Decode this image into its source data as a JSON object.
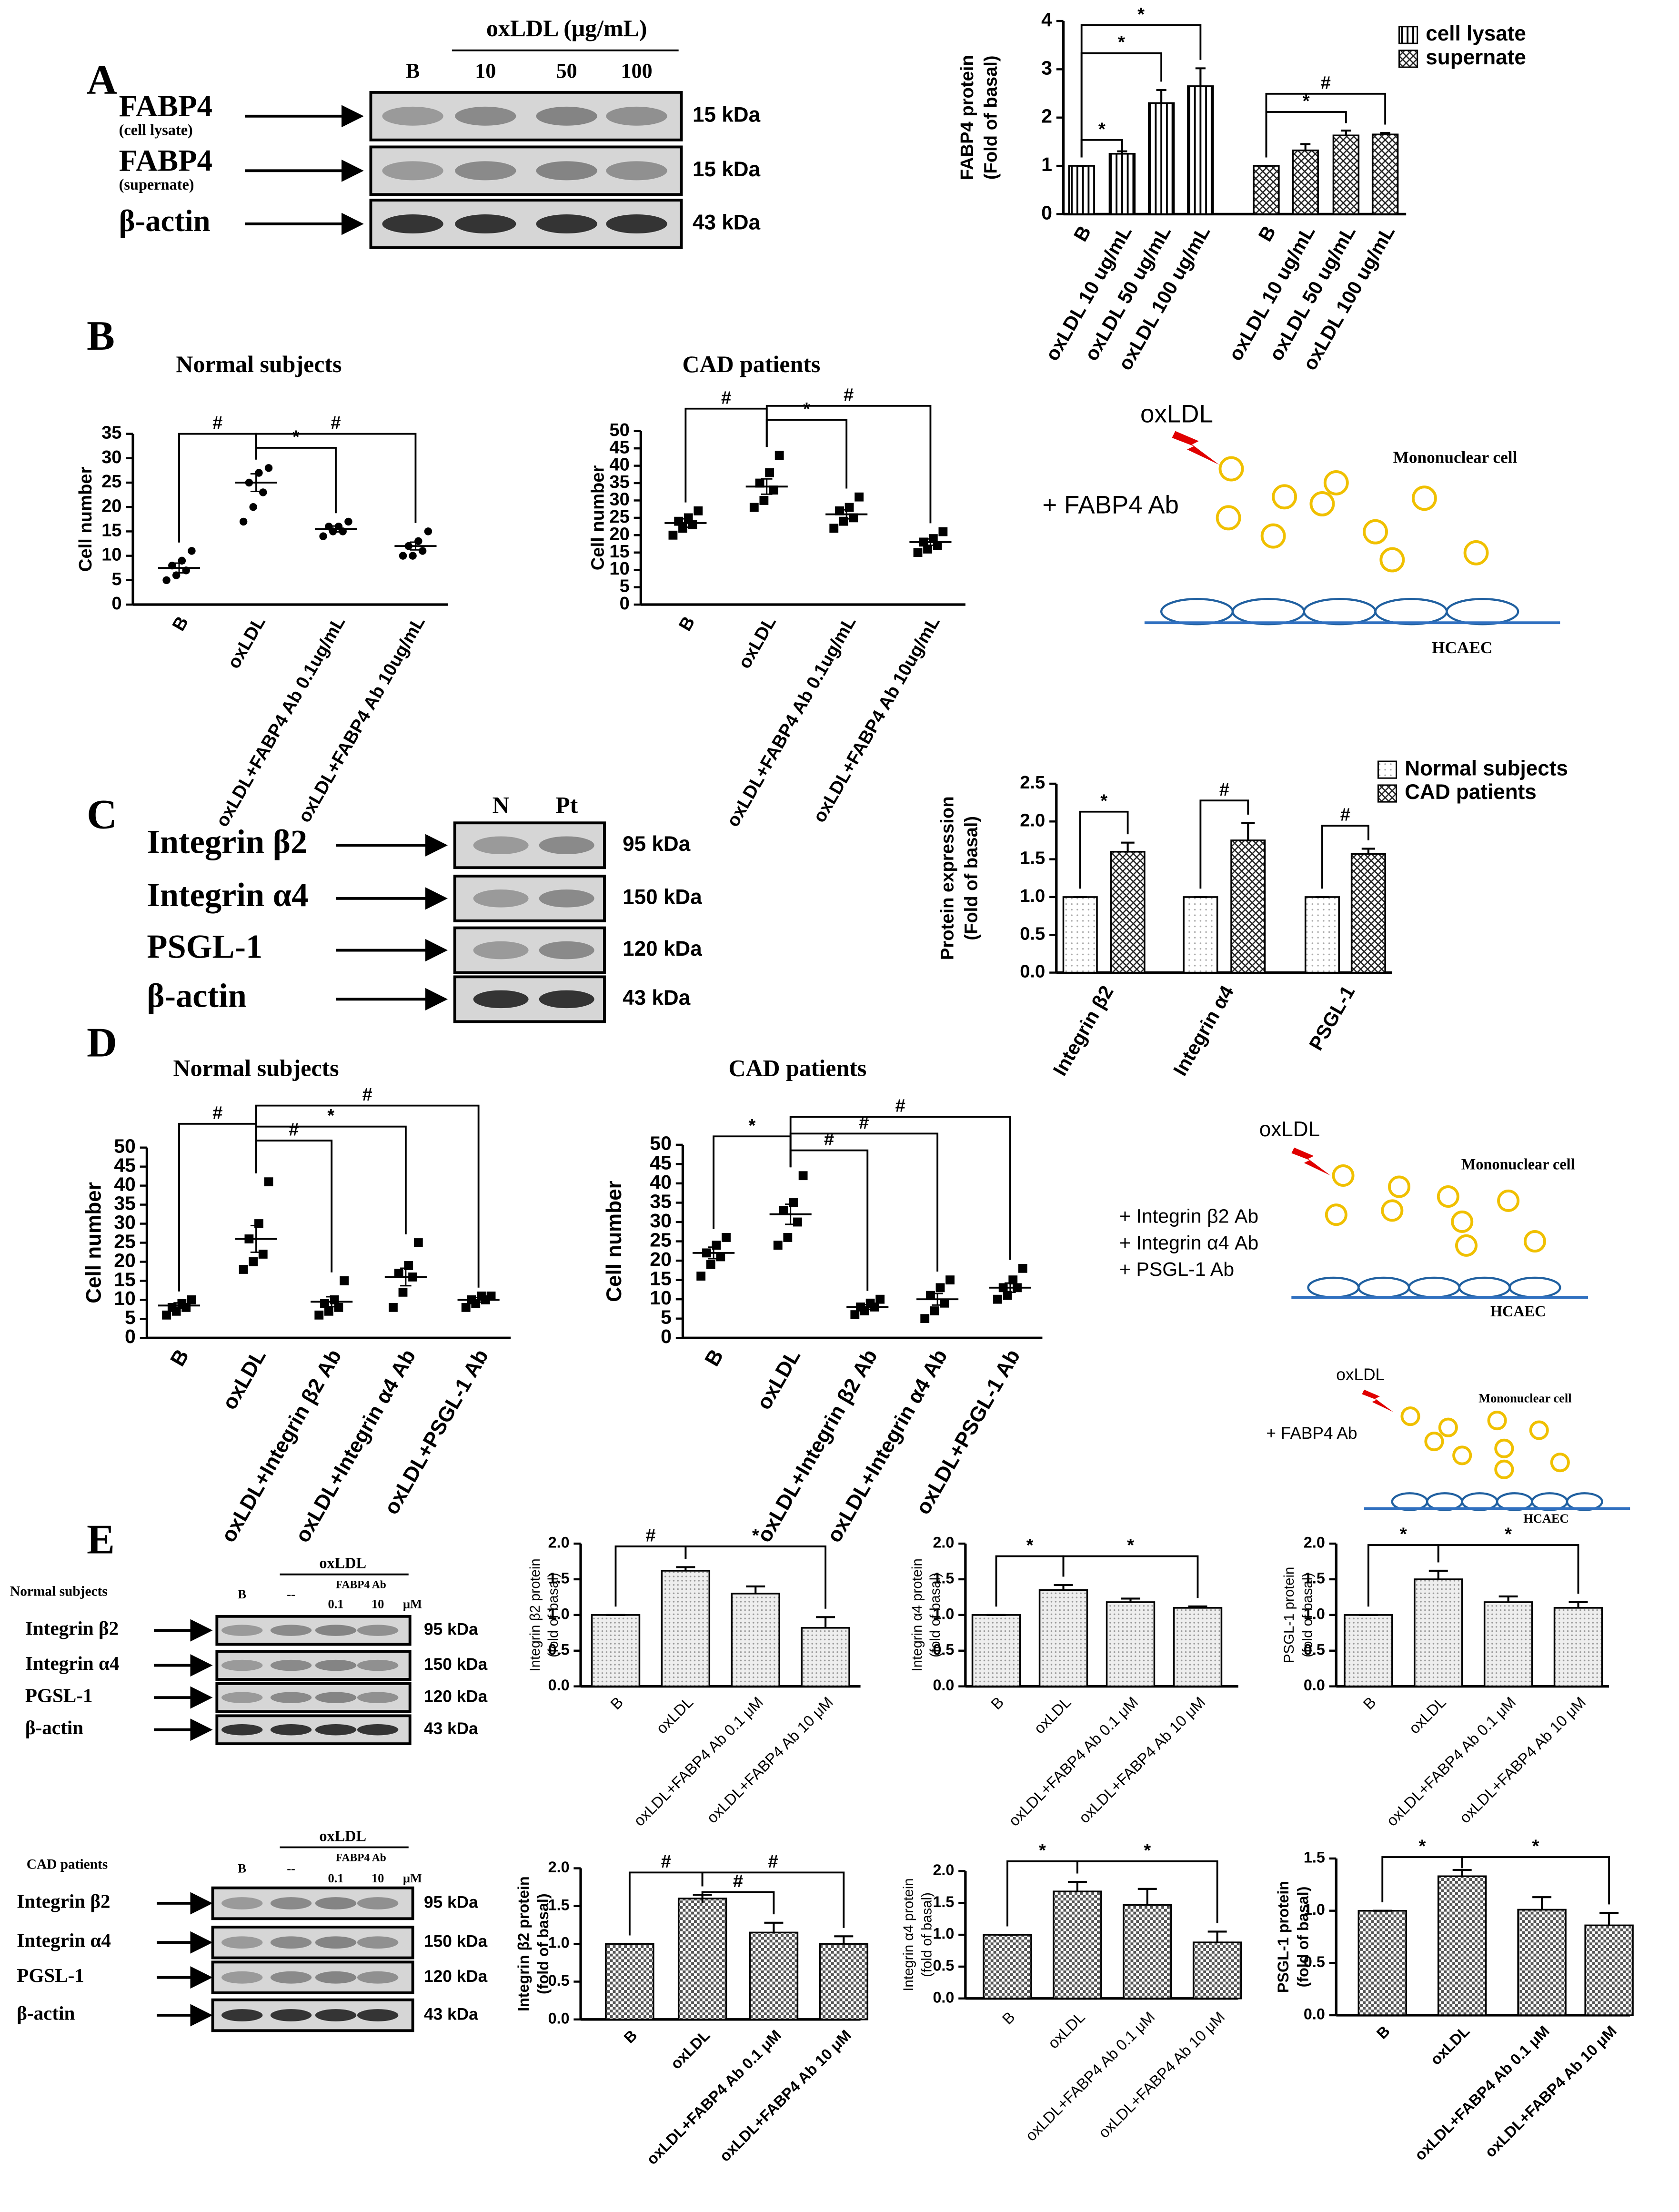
{
  "panel_labels": [
    "A",
    "B",
    "C",
    "D",
    "E"
  ],
  "blots": [
    {
      "header": "oxLDL (μg/mL)",
      "lanes": [
        "B",
        "10",
        "50",
        "100"
      ],
      "rows": [
        {
          "name": "FABP4",
          "sub": "(cell lysate)",
          "size": "15 kDa"
        },
        {
          "name": "FABP4",
          "sub": "(supernate)",
          "size": "15 kDa"
        },
        {
          "name": "β-actin",
          "size": "43 kDa"
        }
      ]
    },
    {
      "lanes": [
        "N",
        "Pt"
      ],
      "rows": [
        {
          "name": "Integrin β2",
          "size": "95 kDa"
        },
        {
          "name": "Integrin α4",
          "size": "150 kDa"
        },
        {
          "name": "PSGL-1",
          "size": "120 kDa"
        },
        {
          "name": "β-actin",
          "size": "43 kDa"
        }
      ]
    },
    {
      "group": "Normal subjects",
      "header": "oxLDL",
      "subheader": "FABP4 Ab",
      "lanes": [
        "B",
        "--",
        "0.1",
        "10"
      ],
      "unit": "μM",
      "rows": [
        {
          "name": "Integrin β2",
          "size": "95 kDa"
        },
        {
          "name": "Integrin α4",
          "size": "150 kDa"
        },
        {
          "name": "PGSL-1",
          "size": "120 kDa"
        },
        {
          "name": "β-actin",
          "size": "43 kDa"
        }
      ]
    },
    {
      "group": "CAD patients",
      "header": "oxLDL",
      "subheader": "FABP4 Ab",
      "lanes": [
        "B",
        "--",
        "0.1",
        "10"
      ],
      "unit": "μM",
      "rows": [
        {
          "name": "Integrin β2",
          "size": "95 kDa"
        },
        {
          "name": "Integrin α4",
          "size": "150 kDa"
        },
        {
          "name": "PGSL-1",
          "size": "120 kDa"
        },
        {
          "name": "β-actin",
          "size": "43 kDa"
        }
      ]
    }
  ],
  "diagrams": [
    {
      "stimulus": "oxLDL",
      "treatments": [
        "+ FABP4 Ab"
      ],
      "cell": "Mononuclear cell",
      "layer": "HCAEC"
    },
    {
      "stimulus": "oxLDL",
      "treatments": [
        "+ Integrin β2 Ab",
        "+ Integrin α4 Ab",
        "+ PSGL-1 Ab"
      ],
      "cell": "Mononuclear cell",
      "layer": "HCAEC"
    },
    {
      "stimulus": "oxLDL",
      "treatments": [
        "+ FABP4 Ab"
      ],
      "cell": "Mononuclear cell",
      "layer": "HCAEC"
    }
  ],
  "chart_data": [
    {
      "type": "bar",
      "y_label": [
        "FABP4 protein",
        "(Fold of basal)"
      ],
      "categories": [
        "B",
        "oxLDL 10 ug/mL",
        "oxLDL 50 ug/mL",
        "oxLDL 100 ug/mL"
      ],
      "series": [
        {
          "name": "cell lysate",
          "values": [
            1,
            1.25,
            2.3,
            2.65
          ],
          "errors": [
            0,
            0.05,
            0.27,
            0.37
          ]
        },
        {
          "name": "supernate",
          "values": [
            1,
            1.32,
            1.63,
            1.65
          ],
          "errors": [
            0,
            0.13,
            0.1,
            0.03
          ]
        }
      ],
      "ylim": [
        0,
        4
      ],
      "yticks": [
        0,
        1,
        2,
        3,
        4
      ],
      "annotations": [
        "*",
        "*",
        "*",
        "#",
        "*"
      ]
    },
    {
      "type": "dot",
      "title": "Normal subjects",
      "y_label": "Cell number",
      "categories": [
        "B",
        "oxLDL",
        "oxLDL+FABP4 Ab 0.1ug/mL",
        "oxLDL+FABP4 Ab 10ug/mL"
      ],
      "points": [
        [
          5,
          6,
          7,
          8,
          9,
          11
        ],
        [
          17,
          20,
          23,
          25,
          27,
          28
        ],
        [
          14,
          15,
          15,
          16,
          16,
          17
        ],
        [
          10,
          10,
          11,
          12,
          13,
          15
        ]
      ],
      "means": [
        7.5,
        25,
        15.5,
        12
      ],
      "errors": [
        1,
        1.8,
        0.6,
        0.8
      ],
      "ylim": [
        0,
        35
      ],
      "yticks": [
        0,
        5,
        10,
        15,
        20,
        25,
        30,
        35
      ],
      "annotations": [
        "#",
        "*",
        "#"
      ]
    },
    {
      "type": "dot",
      "title": "CAD patients",
      "y_label": "Cell number",
      "categories": [
        "B",
        "oxLDL",
        "oxLDL+FABP4 Ab 0.1ug/mL",
        "oxLDL+FABP4 Ab 10ug/mL"
      ],
      "points": [
        [
          20,
          22,
          23,
          24,
          25,
          27
        ],
        [
          28,
          30,
          33,
          35,
          38,
          43
        ],
        [
          22,
          24,
          25,
          27,
          28,
          31
        ],
        [
          15,
          16,
          17,
          18,
          19,
          21
        ]
      ],
      "means": [
        23.5,
        34,
        26,
        18
      ],
      "errors": [
        1.2,
        2.2,
        1.3,
        0.9
      ],
      "ylim": [
        0,
        50
      ],
      "yticks": [
        0,
        5,
        10,
        15,
        20,
        25,
        30,
        35,
        40,
        45,
        50
      ],
      "annotations": [
        "#",
        "*",
        "#"
      ]
    },
    {
      "type": "bar",
      "y_label": [
        "Protein expression",
        "(Fold of basal)"
      ],
      "categories": [
        "Integrin β2",
        "Integrin α4",
        "PSGL-1"
      ],
      "series": [
        {
          "name": "Normal subjects",
          "values": [
            1,
            1,
            1
          ],
          "errors": [
            0,
            0,
            0
          ]
        },
        {
          "name": "CAD patients",
          "values": [
            1.6,
            1.75,
            1.57
          ],
          "errors": [
            0.12,
            0.23,
            0.07
          ]
        }
      ],
      "ylim": [
        0,
        2.5
      ],
      "yticks": [
        {
          "value": 0,
          "label": "0.0"
        },
        {
          "value": 0.5,
          "label": "0.5"
        },
        {
          "value": 1,
          "label": "1.0"
        },
        {
          "value": 1.5,
          "label": "1.5"
        },
        {
          "value": 2,
          "label": "2.0"
        },
        {
          "value": 2.5,
          "label": "2.5"
        }
      ],
      "annotations": [
        "*",
        "#",
        "#"
      ]
    },
    {
      "type": "dot",
      "title": "Normal subjects",
      "y_label": "Cell number",
      "categories": [
        "B",
        "oxLDL",
        "oxLDL+Integrin β2 Ab",
        "oxLDL+Integrin α4 Ab",
        "oxLDL+PSGL-1 Ab"
      ],
      "points": [
        [
          6,
          7,
          8,
          8,
          9,
          10
        ],
        [
          18,
          20,
          22,
          26,
          30,
          41
        ],
        [
          6,
          7,
          8,
          9,
          10,
          15
        ],
        [
          8,
          12,
          16,
          17,
          19,
          25
        ],
        [
          8,
          9,
          10,
          10,
          11,
          11
        ]
      ],
      "means": [
        8.5,
        26,
        9.5,
        16,
        10
      ],
      "errors": [
        0.7,
        3.5,
        1.3,
        2.3,
        0.6
      ],
      "ylim": [
        0,
        50
      ],
      "yticks": [
        0,
        5,
        10,
        15,
        20,
        25,
        30,
        35,
        40,
        45,
        50
      ],
      "annotations": [
        "#",
        "#",
        "*",
        "#"
      ]
    },
    {
      "type": "dot",
      "title": "CAD patients",
      "y_label": "Cell number",
      "categories": [
        "B",
        "oxLDL",
        "oxLDL+Integrin β2 Ab",
        "oxLDL+Integrin α4 Ab",
        "oxLDL+PSGL-1 Ab"
      ],
      "points": [
        [
          16,
          19,
          21,
          22,
          24,
          26
        ],
        [
          24,
          26,
          30,
          33,
          35,
          42
        ],
        [
          6,
          7,
          8,
          8,
          9,
          10
        ],
        [
          5,
          7,
          9,
          11,
          13,
          15
        ],
        [
          10,
          11,
          13,
          13,
          15,
          18
        ]
      ],
      "means": [
        22,
        32,
        8,
        10,
        13
      ],
      "errors": [
        1.5,
        2.6,
        0.6,
        1.5,
        1.2
      ],
      "ylim": [
        0,
        50
      ],
      "yticks": [
        0,
        5,
        10,
        15,
        20,
        25,
        30,
        35,
        40,
        45,
        50
      ],
      "annotations": [
        "*",
        "#",
        "#",
        "#"
      ]
    },
    {
      "type": "bar",
      "y_label": [
        "Integrin β2 protein",
        "(fold of basal)"
      ],
      "categories": [
        "B",
        "oxLDL",
        "oxLDL+FABP4 Ab 0.1 μM",
        "oxLDL+FABP4 Ab 10 μM"
      ],
      "values": [
        1,
        1.62,
        1.3,
        0.82
      ],
      "errors": [
        0,
        0.05,
        0.1,
        0.15
      ],
      "ylim": [
        0,
        2
      ],
      "yticks": [
        {
          "value": 0,
          "label": "0.0"
        },
        {
          "value": 0.5,
          "label": "0.5"
        },
        {
          "value": 1,
          "label": "1.0"
        },
        {
          "value": 1.5,
          "label": "1.5"
        },
        {
          "value": 2,
          "label": "2.0"
        }
      ],
      "annotations": [
        "#",
        "*"
      ]
    },
    {
      "type": "bar",
      "y_label": [
        "Integrin α4 protein",
        "(fold of basal)"
      ],
      "categories": [
        "B",
        "oxLDL",
        "oxLDL+FABP4 Ab 0.1 μM",
        "oxLDL+FABP4 Ab 10 μM"
      ],
      "values": [
        1,
        1.35,
        1.18,
        1.1
      ],
      "errors": [
        0,
        0.07,
        0.05,
        0.02
      ],
      "ylim": [
        0,
        2
      ],
      "yticks": [
        {
          "value": 0,
          "label": "0.0"
        },
        {
          "value": 0.5,
          "label": "0.5"
        },
        {
          "value": 1,
          "label": "1.0"
        },
        {
          "value": 1.5,
          "label": "1.5"
        },
        {
          "value": 2,
          "label": "2.0"
        }
      ],
      "annotations": [
        "*",
        "*"
      ]
    },
    {
      "type": "bar",
      "y_label": [
        "PSGL-1 protein",
        "(fold of basal)"
      ],
      "categories": [
        "B",
        "oxLDL",
        "oxLDL+FABP4 Ab 0.1 μM",
        "oxLDL+FABP4 Ab 10 μM"
      ],
      "values": [
        1,
        1.5,
        1.18,
        1.1
      ],
      "errors": [
        0,
        0.12,
        0.08,
        0.08
      ],
      "ylim": [
        0,
        2
      ],
      "yticks": [
        {
          "value": 0,
          "label": "0.0"
        },
        {
          "value": 0.5,
          "label": "0.5"
        },
        {
          "value": 1,
          "label": "1.0"
        },
        {
          "value": 1.5,
          "label": "1.5"
        },
        {
          "value": 2,
          "label": "2.0"
        }
      ],
      "annotations": [
        "*",
        "*"
      ]
    },
    {
      "type": "bar",
      "y_label": [
        "Integrin β2 protein",
        "(fold of basal)"
      ],
      "categories": [
        "B",
        "oxLDL",
        "oxLDL+FABP4 Ab 0.1 μM",
        "oxLDL+FABP4 Ab 10 μM"
      ],
      "values": [
        1,
        1.6,
        1.15,
        1
      ],
      "errors": [
        0,
        0.05,
        0.13,
        0.1
      ],
      "ylim": [
        0,
        2
      ],
      "yticks": [
        {
          "value": 0,
          "label": "0.0"
        },
        {
          "value": 0.5,
          "label": "0.5"
        },
        {
          "value": 1,
          "label": "1.0"
        },
        {
          "value": 1.5,
          "label": "1.5"
        },
        {
          "value": 2,
          "label": "2.0"
        }
      ],
      "annotations": [
        "#",
        "#",
        "#"
      ]
    },
    {
      "type": "bar",
      "y_label": [
        "Integrin α4 protein",
        "(fold of basal)"
      ],
      "categories": [
        "B",
        "oxLDL",
        "oxLDL+FABP4 Ab 0.1 μM",
        "oxLDL+FABP4 Ab 10 μM"
      ],
      "values": [
        1,
        1.68,
        1.47,
        0.88
      ],
      "errors": [
        0,
        0.15,
        0.25,
        0.17
      ],
      "ylim": [
        0,
        2
      ],
      "yticks": [
        {
          "value": 0,
          "label": "0.0"
        },
        {
          "value": 0.5,
          "label": "0.5"
        },
        {
          "value": 1,
          "label": "1.0"
        },
        {
          "value": 1.5,
          "label": "1.5"
        },
        {
          "value": 2,
          "label": "2.0"
        }
      ],
      "annotations": [
        "*",
        "*"
      ]
    },
    {
      "type": "bar",
      "y_label": [
        "PSGL-1 protein",
        "(fold of basal)"
      ],
      "categories": [
        "B",
        "oxLDL",
        "oxLDL+FABP4 Ab 0.1 μM",
        "oxLDL+FABP4 Ab 10 μM"
      ],
      "values": [
        1,
        1.33,
        1.01,
        0.86
      ],
      "errors": [
        0,
        0.06,
        0.12,
        0.12
      ],
      "ylim": [
        0,
        1.5
      ],
      "yticks": [
        {
          "value": 0,
          "label": "0.0"
        },
        {
          "value": 0.5,
          "label": "0.5"
        },
        {
          "value": 1,
          "label": "1.0"
        },
        {
          "value": 1.5,
          "label": "1.5"
        }
      ],
      "annotations": [
        "*",
        "*"
      ]
    }
  ]
}
